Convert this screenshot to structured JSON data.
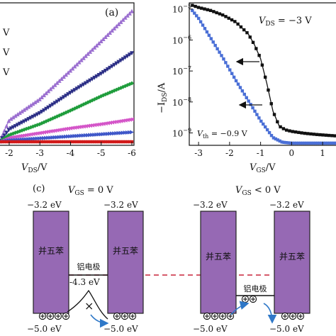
{
  "panel_a": {
    "label": "(a)",
    "xlabel_sym": "V",
    "xlabel_sub": "DS",
    "xlabel_unit": "/V",
    "xticks": [
      "-2",
      "-3",
      "-4",
      "-5",
      "-6"
    ],
    "left_labels": [
      "V",
      "V",
      "V"
    ]
  },
  "panel_b": {
    "annotation_sym": "V",
    "annotation_sub": "DS",
    "annotation_val": " = −3 V",
    "vth_sym": "V",
    "vth_sub": "th",
    "vth_val": " = −0.9 V",
    "ylabel_prefix": "−I",
    "ylabel_sub": "DS",
    "ylabel_unit": "/A",
    "xlabel_sym": "V",
    "xlabel_sub": "GS",
    "xlabel_unit": "/V",
    "xticks": [
      "-3",
      "-2",
      "-1",
      "0",
      "1"
    ],
    "yticks": [
      {
        "base": "10",
        "exp": "−5"
      },
      {
        "base": "10",
        "exp": "−6"
      },
      {
        "base": "10",
        "exp": "−7"
      },
      {
        "base": "10",
        "exp": "−8"
      },
      {
        "base": "10",
        "exp": "−9"
      }
    ]
  },
  "panel_c": {
    "label": "(c)",
    "left_title_sym": "V",
    "left_title_sub": "GS",
    "left_title_val": " =  0 V",
    "right_title_sym": "V",
    "right_title_sub": "GS",
    "right_title_val": " < 0 V",
    "level_top": "−3.2 eV",
    "level_bottom": "−5.0 eV",
    "electrode_level": "-4.3 eV",
    "material": "并五苯",
    "electrode": "铝电极"
  },
  "chart_data": [
    {
      "type": "line",
      "title": "",
      "xlabel": "V_DS/V",
      "ylabel": "",
      "xlim": [
        -1.7,
        -6
      ],
      "x": [
        -1.7,
        -2,
        -3,
        -4,
        -5,
        -6
      ],
      "series": [
        {
          "color": "#9b6fd0",
          "marker": "triangle-up",
          "values": [
            0.02,
            0.32,
            0.63,
            1.05,
            1.48,
            1.92
          ]
        },
        {
          "color": "#2c2f86",
          "marker": "triangle-down",
          "values": [
            0.01,
            0.18,
            0.42,
            0.72,
            1.0,
            1.3
          ]
        },
        {
          "color": "#1f9d3c",
          "marker": "diamond",
          "values": [
            0.005,
            0.1,
            0.26,
            0.46,
            0.67,
            0.86
          ]
        },
        {
          "color": "#d455c8",
          "marker": "triangle-left",
          "values": [
            0.003,
            0.06,
            0.13,
            0.2,
            0.26,
            0.33
          ]
        },
        {
          "color": "#3e56c8",
          "marker": "triangle-right",
          "values": [
            0.0,
            0.02,
            0.05,
            0.08,
            0.11,
            0.14
          ]
        },
        {
          "color": "#d11a1a",
          "marker": "square",
          "values": [
            0.0,
            0.0,
            0.0,
            0.0,
            0.0,
            0.0
          ]
        }
      ]
    },
    {
      "type": "line",
      "title": "",
      "xlabel": "V_GS/V",
      "ylabel": "-I_DS/A",
      "log_y": true,
      "xlim": [
        -3.3,
        1.5
      ],
      "ylim_exp": [
        -9.4,
        -4.8
      ],
      "series": [
        {
          "color": "#111111",
          "marker": "square",
          "x": [
            -3.2,
            -3.0,
            -2.6,
            -2.2,
            -1.8,
            -1.4,
            -1.2,
            -1.0,
            -0.8,
            -0.6,
            -0.4,
            -0.2,
            0.0,
            0.4,
            0.8,
            1.2,
            1.5
          ],
          "log_values": [
            -4.88,
            -4.95,
            -5.05,
            -5.2,
            -5.42,
            -5.8,
            -6.15,
            -6.6,
            -7.4,
            -8.3,
            -8.78,
            -8.9,
            -8.95,
            -9.01,
            -9.05,
            -9.08,
            -9.1
          ]
        },
        {
          "color": "#4a6fd6",
          "marker": "square",
          "x": [
            -3.2,
            -3.0,
            -2.6,
            -2.2,
            -1.8,
            -1.4,
            -1.0,
            -0.6,
            -0.3,
            0.0,
            0.4,
            0.8,
            1.2,
            1.5
          ],
          "log_values": [
            -5.05,
            -5.3,
            -5.95,
            -6.6,
            -7.3,
            -7.95,
            -8.6,
            -9.15,
            -9.3,
            -9.33,
            -9.33,
            -9.33,
            -9.33,
            -9.33
          ]
        }
      ]
    }
  ]
}
